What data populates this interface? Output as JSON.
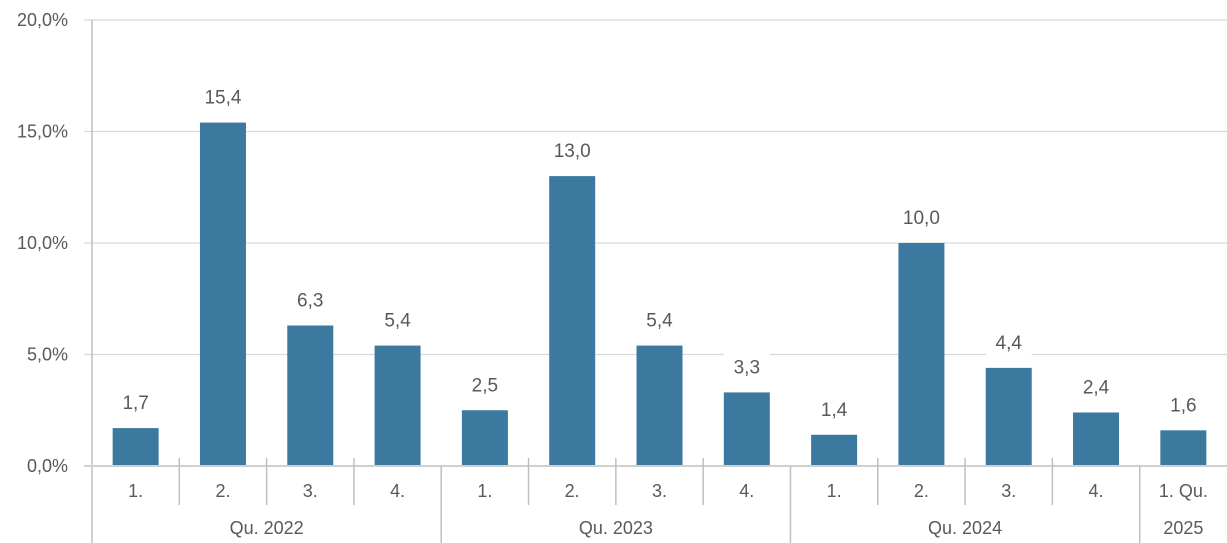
{
  "chart_data": {
    "type": "bar",
    "title": "",
    "xlabel": "",
    "ylabel": "",
    "ylim": [
      0,
      20
    ],
    "ytick_values": [
      0,
      5,
      10,
      15,
      20
    ],
    "ytick_labels": [
      "0,0%",
      "5,0%",
      "10,0%",
      "15,0%",
      "20,0%"
    ],
    "grid": true,
    "bar_color": "#3b7a9e",
    "categories": [
      "1.",
      "2.",
      "3.",
      "4.",
      "1.",
      "2.",
      "3.",
      "4.",
      "1.",
      "2.",
      "3.",
      "4.",
      "1. Qu."
    ],
    "values": [
      1.7,
      15.4,
      6.3,
      5.4,
      2.5,
      13.0,
      5.4,
      3.3,
      1.4,
      10.0,
      4.4,
      2.4,
      1.6
    ],
    "value_labels": [
      "1,7",
      "15,4",
      "6,3",
      "5,4",
      "2,5",
      "13,0",
      "5,4",
      "3,3",
      "1,4",
      "10,0",
      "4,4",
      "2,4",
      "1,6"
    ],
    "groups": [
      {
        "label": "Qu. 2022",
        "count": 4
      },
      {
        "label": "Qu. 2023",
        "count": 4
      },
      {
        "label": "Qu. 2024",
        "count": 4
      },
      {
        "label": "2025",
        "count": 1
      }
    ]
  }
}
